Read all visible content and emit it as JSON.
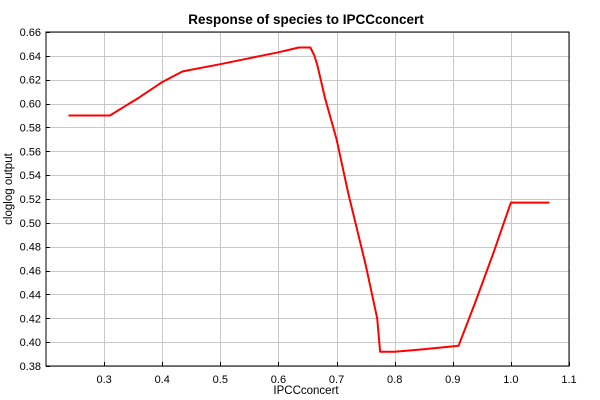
{
  "chart_data": {
    "type": "line",
    "title": "Response of species to IPCCconcert",
    "xlabel": "IPCCconcert",
    "ylabel": "cloglog output",
    "xlim": [
      0.2,
      1.1
    ],
    "ylim": [
      0.38,
      0.66
    ],
    "xticks": [
      0.3,
      0.4,
      0.5,
      0.6,
      0.7,
      0.8,
      0.9,
      1.0,
      1.1
    ],
    "xtick_labels": [
      "0.3",
      "0.4",
      "0.5",
      "0.6",
      "0.7",
      "0.8",
      "0.9",
      "1.0",
      "1.1"
    ],
    "yticks": [
      0.38,
      0.4,
      0.42,
      0.44,
      0.46,
      0.48,
      0.5,
      0.52,
      0.54,
      0.56,
      0.58,
      0.6,
      0.62,
      0.64,
      0.66
    ],
    "ytick_labels": [
      "0.38",
      "0.40",
      "0.42",
      "0.44",
      "0.46",
      "0.48",
      "0.50",
      "0.52",
      "0.54",
      "0.56",
      "0.58",
      "0.60",
      "0.62",
      "0.64",
      "0.66"
    ],
    "grid": true,
    "series": [
      {
        "color": "#ff0000",
        "x": [
          0.24,
          0.31,
          0.36,
          0.4,
          0.435,
          0.5,
          0.55,
          0.6,
          0.635,
          0.655,
          0.662,
          0.667,
          0.68,
          0.7,
          0.72,
          0.75,
          0.77,
          0.775,
          0.8,
          0.85,
          0.91,
          0.94,
          0.97,
          1.0,
          1.065
        ],
        "y": [
          0.59,
          0.59,
          0.605,
          0.618,
          0.627,
          0.633,
          0.638,
          0.643,
          0.647,
          0.647,
          0.64,
          0.632,
          0.605,
          0.57,
          0.525,
          0.465,
          0.42,
          0.392,
          0.392,
          0.394,
          0.397,
          0.435,
          0.475,
          0.517,
          0.517
        ]
      }
    ]
  }
}
